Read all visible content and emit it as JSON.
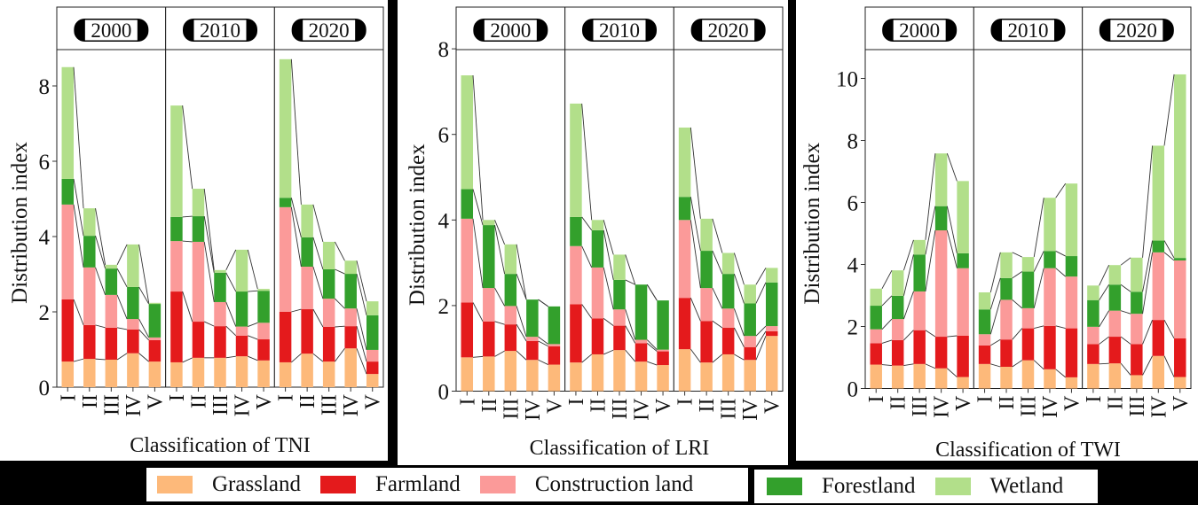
{
  "colors": {
    "Grassland": "#FDB97A",
    "Farmland": "#E41A1C",
    "Construction land": "#FB9A99",
    "Forestland": "#33A02C",
    "Wetland": "#B2DF8A"
  },
  "legend": {
    "items": [
      "Grassland",
      "Farmland",
      "Construction land",
      "Forestland",
      "Wetland"
    ]
  },
  "chart_data": [
    {
      "type": "bar",
      "stacked": true,
      "title": "",
      "xlabel": "Classification of TNI",
      "ylabel": "Distribution index",
      "ylim": [
        0,
        9
      ],
      "yticks": [
        0,
        2,
        4,
        6,
        8
      ],
      "facets": [
        "2000",
        "2010",
        "2020"
      ],
      "categories": [
        "I",
        "II",
        "III",
        "IV",
        "V"
      ],
      "series_names": [
        "Grassland",
        "Farmland",
        "Construction land",
        "Forestland",
        "Wetland"
      ],
      "cumulative_tops": {
        "2000": [
          [
            0.68,
            2.33,
            4.85,
            5.53,
            8.5
          ],
          [
            0.75,
            1.65,
            3.18,
            4.02,
            4.75
          ],
          [
            0.73,
            1.58,
            2.45,
            3.15,
            3.25
          ],
          [
            0.9,
            1.53,
            1.81,
            2.66,
            3.79
          ],
          [
            0.68,
            1.25,
            1.32,
            2.21,
            2.24
          ]
        ],
        "2010": [
          [
            0.66,
            2.54,
            3.88,
            4.52,
            7.48
          ],
          [
            0.78,
            1.74,
            3.86,
            4.54,
            5.27
          ],
          [
            0.78,
            1.62,
            2.26,
            3.04,
            3.11
          ],
          [
            0.82,
            1.37,
            1.61,
            2.54,
            3.65
          ],
          [
            0.71,
            1.27,
            1.71,
            2.56,
            2.61
          ]
        ],
        "2020": [
          [
            0.66,
            2.0,
            4.78,
            5.03,
            8.71
          ],
          [
            0.89,
            2.07,
            3.2,
            3.98,
            4.85
          ],
          [
            0.68,
            1.6,
            2.35,
            3.13,
            3.86
          ],
          [
            1.03,
            1.62,
            2.09,
            3.01,
            3.36
          ],
          [
            0.35,
            0.68,
            0.99,
            1.91,
            2.28
          ]
        ]
      }
    },
    {
      "type": "bar",
      "stacked": true,
      "title": "",
      "xlabel": "Classification of LRI",
      "ylabel": "Distribution index",
      "ylim": [
        0,
        8
      ],
      "yticks": [
        0,
        2,
        4,
        6,
        8
      ],
      "facets": [
        "2000",
        "2010",
        "2020"
      ],
      "categories": [
        "I",
        "II",
        "III",
        "IV",
        "V"
      ],
      "series_names": [
        "Grassland",
        "Farmland",
        "Construction land",
        "Forestland",
        "Wetland"
      ],
      "cumulative_tops": {
        "2000": [
          [
            0.79,
            2.07,
            4.03,
            4.72,
            7.38
          ],
          [
            0.81,
            1.63,
            2.41,
            3.88,
            4.0
          ],
          [
            0.94,
            1.56,
            1.99,
            2.74,
            3.43
          ],
          [
            0.73,
            1.17,
            1.27,
            2.14,
            2.14
          ],
          [
            0.62,
            1.05,
            1.1,
            1.98,
            1.98
          ]
        ],
        "2010": [
          [
            0.67,
            2.03,
            3.39,
            4.07,
            6.72
          ],
          [
            0.86,
            1.7,
            2.89,
            3.76,
            4.0
          ],
          [
            0.96,
            1.53,
            1.91,
            2.6,
            3.19
          ],
          [
            0.69,
            1.12,
            1.2,
            2.49,
            2.49
          ],
          [
            0.61,
            0.93,
            0.97,
            2.12,
            2.12
          ]
        ],
        "2020": [
          [
            0.98,
            2.18,
            4.0,
            4.54,
            6.16
          ],
          [
            0.67,
            1.64,
            2.41,
            3.28,
            4.03
          ],
          [
            0.86,
            1.48,
            1.93,
            2.74,
            3.23
          ],
          [
            0.73,
            1.03,
            1.29,
            2.05,
            2.49
          ],
          [
            1.29,
            1.4,
            1.52,
            2.54,
            2.88
          ]
        ]
      }
    },
    {
      "type": "bar",
      "stacked": true,
      "title": "",
      "xlabel": "Classification of TWI",
      "ylabel": "Distribution index",
      "ylim": [
        0,
        11
      ],
      "yticks": [
        0,
        2,
        4,
        6,
        8,
        10
      ],
      "facets": [
        "2000",
        "2010",
        "2020"
      ],
      "categories": [
        "I",
        "II",
        "III",
        "IV",
        "V"
      ],
      "series_names": [
        "Grassland",
        "Farmland",
        "Construction land",
        "Forestland",
        "Wetland"
      ],
      "cumulative_tops": {
        "2000": [
          [
            0.77,
            1.46,
            1.91,
            2.67,
            3.22
          ],
          [
            0.74,
            1.56,
            2.24,
            2.99,
            3.81
          ],
          [
            0.79,
            1.88,
            3.13,
            4.32,
            4.79
          ],
          [
            0.65,
            1.67,
            5.1,
            5.88,
            7.58
          ],
          [
            0.37,
            1.7,
            3.88,
            4.36,
            6.69
          ]
        ],
        "2010": [
          [
            0.79,
            1.39,
            1.75,
            2.55,
            3.1
          ],
          [
            0.7,
            1.58,
            2.86,
            3.56,
            4.39
          ],
          [
            0.91,
            1.94,
            2.59,
            3.77,
            4.24
          ],
          [
            0.62,
            2.02,
            3.88,
            4.43,
            6.15
          ],
          [
            0.36,
            1.94,
            3.61,
            4.27,
            6.61
          ]
        ],
        "2020": [
          [
            0.79,
            1.43,
            1.99,
            2.85,
            3.32
          ],
          [
            0.81,
            1.67,
            2.51,
            3.35,
            3.98
          ],
          [
            0.43,
            1.43,
            2.41,
            3.12,
            4.22
          ],
          [
            1.05,
            2.21,
            4.39,
            4.77,
            7.83
          ],
          [
            0.37,
            1.62,
            4.13,
            4.21,
            10.13
          ]
        ]
      }
    }
  ]
}
